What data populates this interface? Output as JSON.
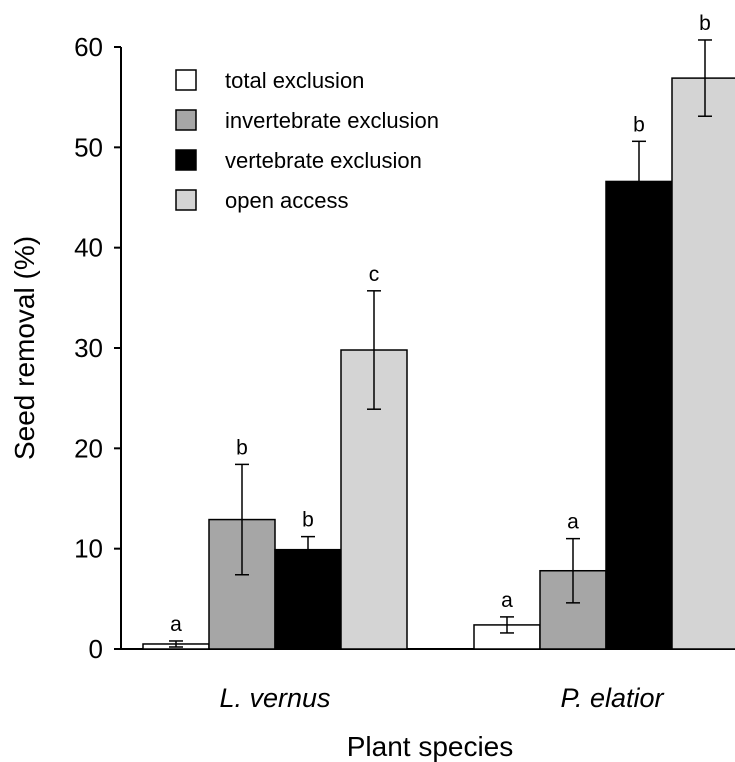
{
  "chart_data": {
    "type": "bar",
    "title": "",
    "xlabel": "Plant species",
    "ylabel": "Seed removal (%)",
    "ylim": [
      0,
      60
    ],
    "yticks": [
      0,
      10,
      20,
      30,
      40,
      50,
      60
    ],
    "categories": [
      "L. vernus",
      "P. elatior"
    ],
    "series": [
      {
        "name": "total exclusion",
        "color": "#ffffff",
        "values": [
          0.5,
          2.4
        ],
        "errors": [
          0.3,
          0.8
        ],
        "letters": [
          "a",
          "a"
        ]
      },
      {
        "name": "invertebrate exclusion",
        "color": "#a6a6a6",
        "values": [
          12.9,
          7.8
        ],
        "errors": [
          5.5,
          3.2
        ],
        "letters": [
          "b",
          "a"
        ]
      },
      {
        "name": "vertebrate exclusion",
        "color": "#000000",
        "values": [
          9.9,
          46.6
        ],
        "errors": [
          1.3,
          4.0
        ],
        "letters": [
          "b",
          "b"
        ]
      },
      {
        "name": "open access",
        "color": "#d4d4d4",
        "values": [
          29.8,
          56.9
        ],
        "errors": [
          5.9,
          3.8
        ],
        "letters": [
          "c",
          "b"
        ]
      }
    ],
    "legend_position": "top-left",
    "grid": false
  }
}
